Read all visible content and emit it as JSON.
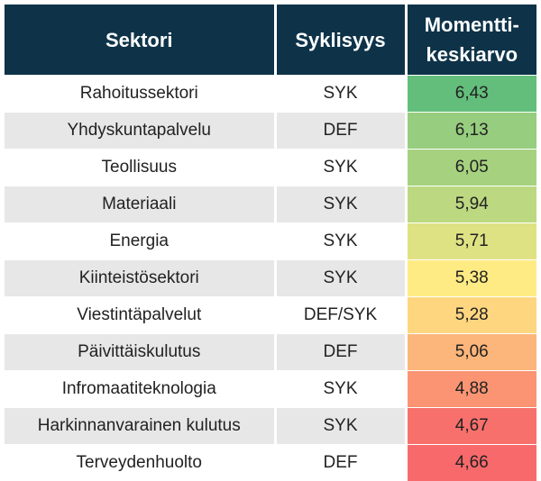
{
  "table": {
    "headers": [
      "Sektori",
      "Syklisyys",
      "Momentti-\nkeskiarvo"
    ],
    "rows": [
      [
        "Rahoitussektori",
        "SYK",
        "6,43"
      ],
      [
        "Yhdyskuntapalvelu",
        "DEF",
        "6,13"
      ],
      [
        "Teollisuus",
        "SYK",
        "6,05"
      ],
      [
        "Materiaali",
        "SYK",
        "5,94"
      ],
      [
        "Energia",
        "SYK",
        "5,71"
      ],
      [
        "Kiinteistösektori",
        "SYK",
        "5,38"
      ],
      [
        "Viestintäpalvelut",
        "DEF/SYK",
        "5,28"
      ],
      [
        "Päivittäiskulutus",
        "DEF",
        "5,06"
      ],
      [
        "Infromaatiteknologia",
        "SYK",
        "4,88"
      ],
      [
        "Harkinnanvarainen kulutus",
        "SYK",
        "4,67"
      ],
      [
        "Terveydenhuolto",
        "DEF",
        "4,66"
      ]
    ],
    "value_colors": [
      "#63be7b",
      "#97cd7e",
      "#a6d27f",
      "#bcd881",
      "#dfe283",
      "#ffeb84",
      "#fed680",
      "#fcb57a",
      "#fa9473",
      "#f8706c",
      "#f8696b"
    ]
  }
}
